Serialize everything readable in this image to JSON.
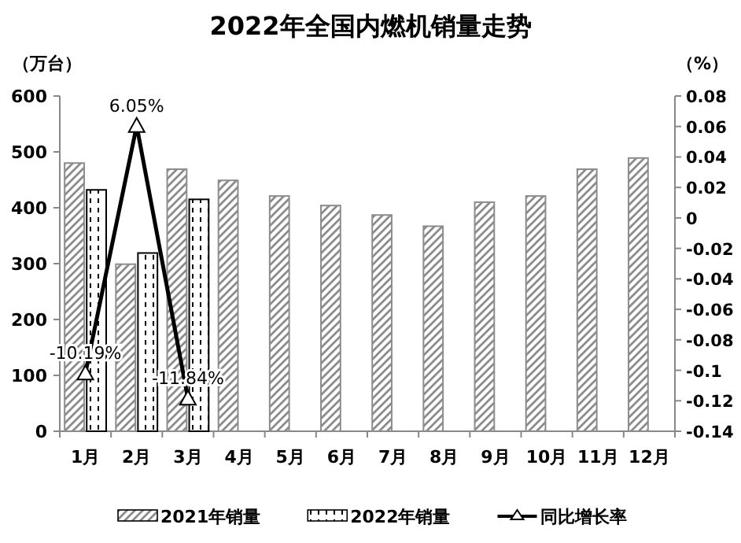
{
  "chart_data": {
    "type": "bar",
    "title": "2022年全国内燃机销量走势",
    "ylabel": "（万台）",
    "y2label": "（%）",
    "categories": [
      "1月",
      "2月",
      "3月",
      "4月",
      "5月",
      "6月",
      "7月",
      "8月",
      "9月",
      "10月",
      "11月",
      "12月"
    ],
    "series": [
      {
        "name": "2021年销量",
        "color": "#8c8c8c",
        "values": [
          480,
          299,
          469,
          449,
          421,
          404,
          387,
          367,
          410,
          421,
          469,
          489
        ]
      },
      {
        "name": "2022年销量",
        "color": "#000000",
        "values": [
          432,
          319,
          415,
          null,
          null,
          null,
          null,
          null,
          null,
          null,
          null,
          null
        ]
      },
      {
        "name": "同比增长率",
        "type": "line",
        "axis": "y2",
        "marker": "triangle",
        "color": "#000000",
        "values": [
          -0.1019,
          0.0605,
          -0.1184,
          null,
          null,
          null,
          null,
          null,
          null,
          null,
          null,
          null
        ],
        "value_labels": [
          "-10.19%",
          "6.05%",
          "-11.84%",
          null,
          null,
          null,
          null,
          null,
          null,
          null,
          null,
          null
        ]
      }
    ],
    "ylim": [
      0,
      600
    ],
    "yticks": [
      0,
      100,
      200,
      300,
      400,
      500,
      600
    ],
    "y2lim": [
      -0.14,
      0.08
    ],
    "y2ticks": [
      -0.14,
      -0.12,
      -0.1,
      -0.08,
      -0.06,
      -0.04,
      -0.02,
      0,
      0.02,
      0.04,
      0.06,
      0.08
    ],
    "grid": false,
    "legend": "bottom"
  }
}
